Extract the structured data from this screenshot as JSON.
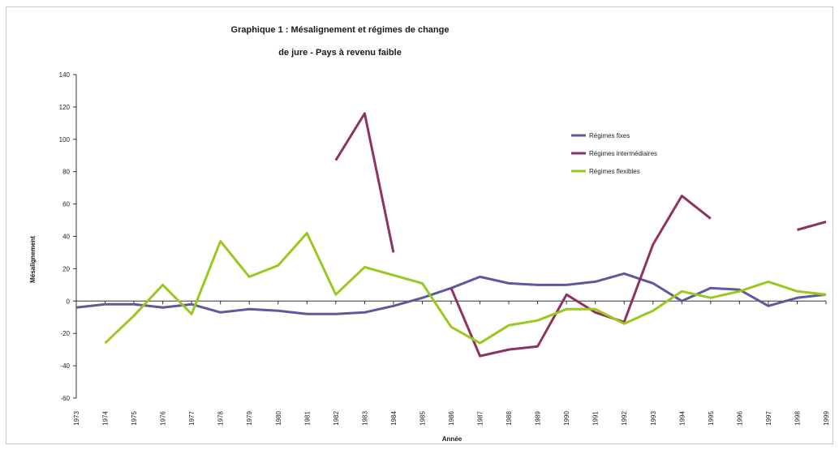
{
  "chart_data": {
    "type": "line",
    "title_line1": "Graphique 1 : Mésalignement et régimes de change",
    "title_line2": "de jure - Pays à revenu faible",
    "xlabel": "Année",
    "ylabel": "Mésalignement",
    "ylim": [
      -60,
      140
    ],
    "yticks": [
      -60,
      -40,
      -20,
      0,
      20,
      40,
      60,
      80,
      100,
      120,
      140
    ],
    "categories": [
      "1973",
      "1974",
      "1975",
      "1976",
      "1977",
      "1978",
      "1979",
      "1980",
      "1981",
      "1982",
      "1983",
      "1984",
      "1985",
      "1986",
      "1987",
      "1988",
      "1989",
      "1990",
      "1991",
      "1992",
      "1993",
      "1994",
      "1995",
      "1996",
      "1997",
      "1998",
      "1999"
    ],
    "legend_position": "right",
    "series": [
      {
        "name": "Régimes fixes",
        "color": "#5b5b9c",
        "values": [
          -4,
          -2,
          -2,
          -4,
          -2,
          -7,
          -5,
          -6,
          -8,
          -8,
          -7,
          -3,
          2,
          8,
          15,
          11,
          10,
          10,
          12,
          17,
          11,
          0,
          8,
          7,
          -3,
          2,
          4
        ]
      },
      {
        "name": "Régimes intermédiaires",
        "color": "#8e3361",
        "values": [
          null,
          null,
          null,
          null,
          null,
          null,
          null,
          null,
          null,
          87,
          116,
          30,
          null,
          8,
          -34,
          -30,
          -28,
          4,
          -7,
          -13,
          35,
          65,
          51,
          null,
          null,
          44,
          49
        ]
      },
      {
        "name": "Régimes flexibles",
        "color": "#99c91e",
        "values": [
          null,
          -26,
          -9,
          10,
          -8,
          37,
          15,
          22,
          42,
          4,
          21,
          16,
          11,
          -16,
          -26,
          -15,
          -12,
          -5,
          -5,
          -14,
          -6,
          6,
          2,
          6,
          12,
          6,
          4
        ]
      }
    ]
  }
}
